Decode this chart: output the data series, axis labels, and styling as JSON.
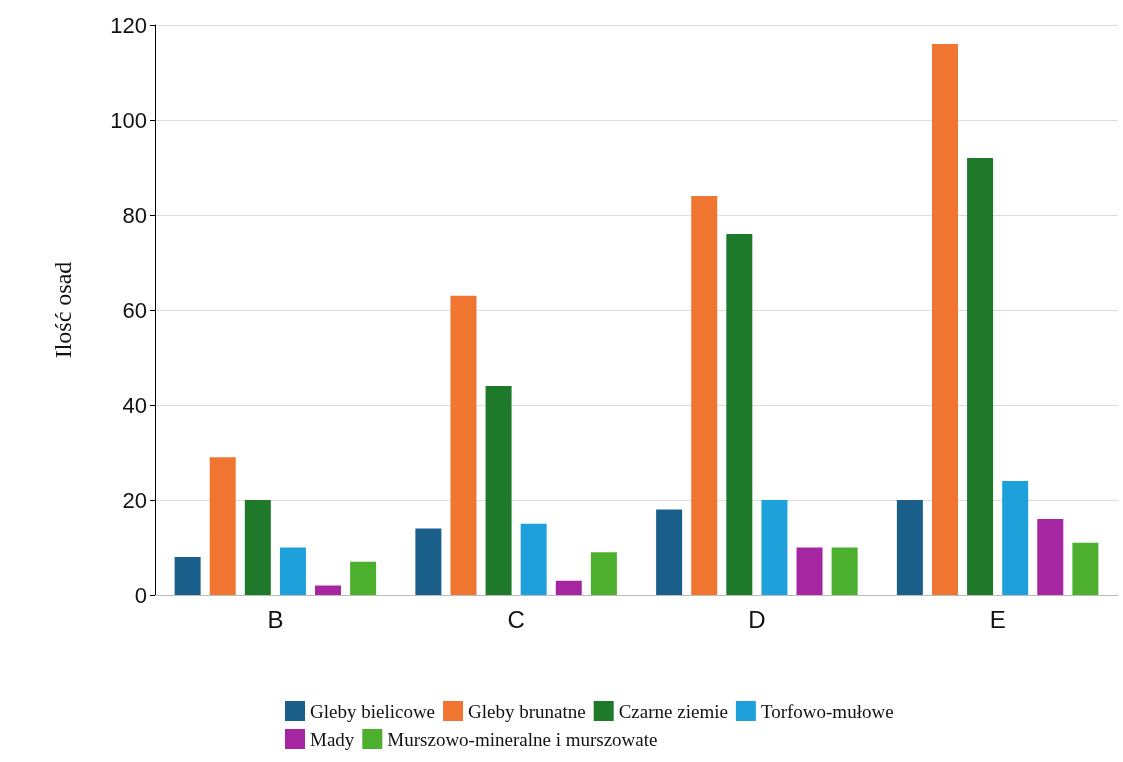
{
  "chart_data": {
    "type": "bar",
    "ylabel": "Ilość osad",
    "categories": [
      "B",
      "C",
      "D",
      "E"
    ],
    "series": [
      {
        "name": "Gleby bielicowe",
        "color": "#1a5f8a",
        "values": [
          8,
          14,
          18,
          20
        ]
      },
      {
        "name": "Gleby brunatne",
        "color": "#ef7530",
        "values": [
          29,
          63,
          84,
          116
        ]
      },
      {
        "name": "Czarne ziemie",
        "color": "#1e7a2a",
        "values": [
          20,
          44,
          76,
          92
        ]
      },
      {
        "name": "Torfowo-mułowe",
        "color": "#1ea1db",
        "values": [
          10,
          15,
          20,
          24
        ]
      },
      {
        "name": "Mady",
        "color": "#a526a0",
        "values": [
          2,
          3,
          10,
          16
        ]
      },
      {
        "name": "Murszowo-mineralne i murszowate",
        "color": "#4caf2e",
        "values": [
          7,
          9,
          10,
          11
        ]
      }
    ],
    "ylim": [
      0,
      120
    ],
    "yticks": [
      0,
      20,
      40,
      60,
      80,
      100,
      120
    ],
    "grid": "y",
    "legend": "bottom"
  }
}
